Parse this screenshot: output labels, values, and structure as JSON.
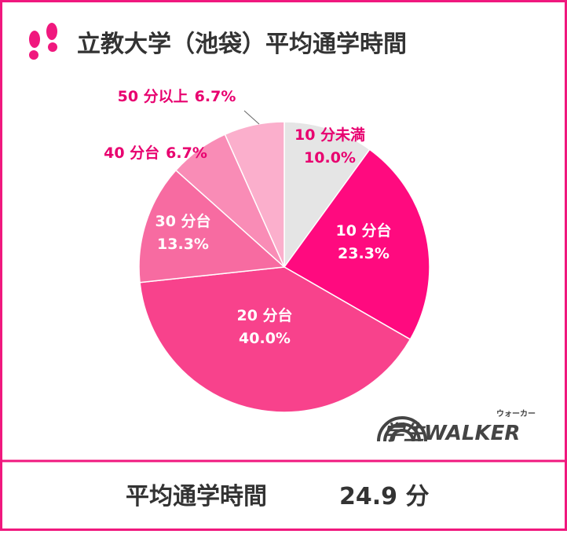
{
  "chart_data": {
    "type": "pie",
    "title": "立教大学（池袋）平均通学時間",
    "categories": [
      "10 分未満",
      "10 分台",
      "20 分台",
      "30 分台",
      "40 分台",
      "50 分以上"
    ],
    "values": [
      10.0,
      23.3,
      40.0,
      13.3,
      6.7,
      6.7
    ],
    "value_labels": [
      "10.0%",
      "23.3%",
      "40.0%",
      "13.3%",
      "6.7%",
      "6.7%"
    ],
    "colors": [
      "#e5e5e5",
      "#ff0a7f",
      "#f8428c",
      "#f76ba1",
      "#f98cb6",
      "#fbafcc"
    ],
    "average_label": "平均通学時間",
    "average_value": "24.9 分"
  },
  "logo": {
    "main": "学生WALKER",
    "reading": "ウォーカー"
  }
}
